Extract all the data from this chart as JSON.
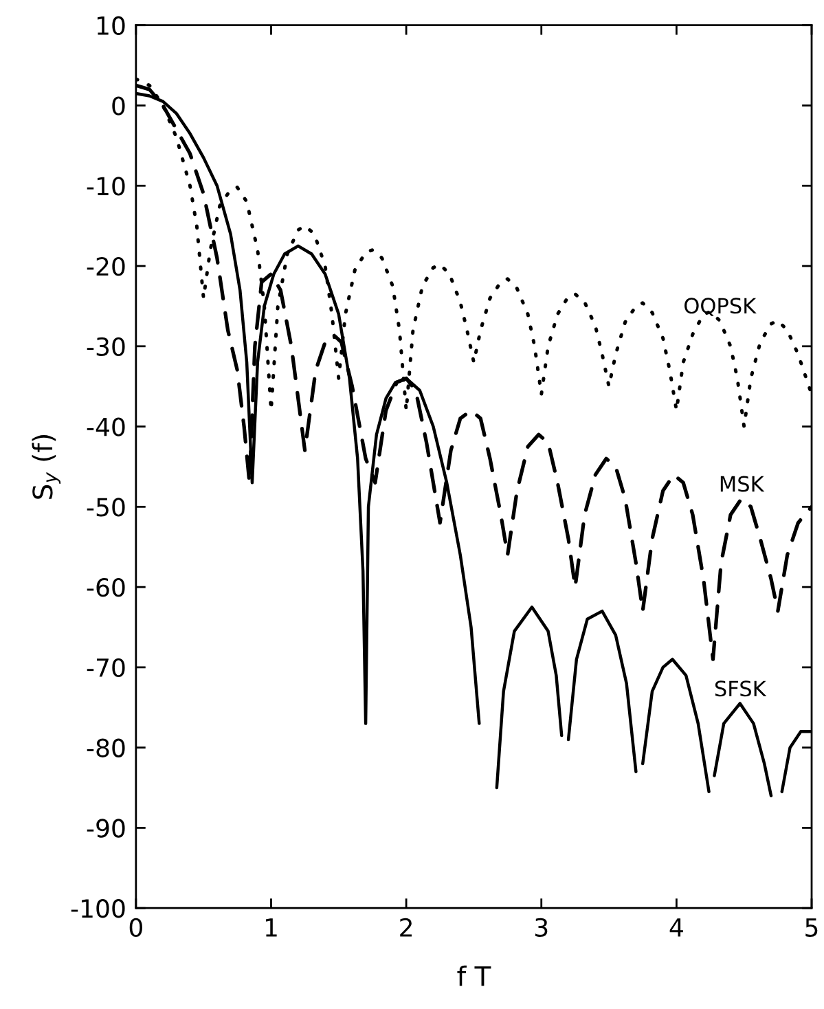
{
  "chart_data": {
    "type": "line",
    "xlabel": "f T",
    "ylabel": "S$_{y}$ (f)",
    "xlim": [
      0,
      5
    ],
    "ylim": [
      -100,
      10
    ],
    "xticks": [
      0,
      1,
      2,
      3,
      4,
      5
    ],
    "yticks": [
      10,
      0,
      -10,
      -20,
      -30,
      -40,
      -50,
      -60,
      -70,
      -80,
      -90,
      -100
    ],
    "grid": false,
    "series": [
      {
        "name": "OQPSK",
        "color": "#000000",
        "line_style": "dotted",
        "x": [
          0,
          0.1,
          0.2,
          0.3,
          0.4,
          0.45,
          0.5,
          0.55,
          0.62,
          0.7,
          0.75,
          0.82,
          0.9,
          0.95,
          1.0,
          1.05,
          1.12,
          1.2,
          1.25,
          1.32,
          1.4,
          1.45,
          1.5,
          1.55,
          1.62,
          1.7,
          1.75,
          1.82,
          1.9,
          1.95,
          2.0,
          2.05,
          2.12,
          2.2,
          2.25,
          2.32,
          2.4,
          2.45,
          2.5,
          2.55,
          2.62,
          2.7,
          2.75,
          2.82,
          2.9,
          2.95,
          3.0,
          3.05,
          3.12,
          3.2,
          3.25,
          3.32,
          3.4,
          3.45,
          3.5,
          3.55,
          3.62,
          3.7,
          3.75,
          3.82,
          3.9,
          3.95,
          4.0,
          4.05,
          4.12,
          4.2,
          4.25,
          4.32,
          4.4,
          4.45,
          4.5,
          4.55,
          4.62,
          4.7,
          4.75,
          4.82,
          4.9,
          4.95,
          5.0
        ],
        "values": [
          3.3,
          2.5,
          0,
          -4,
          -10,
          -15,
          -24,
          -18,
          -12.5,
          -10.5,
          -10.2,
          -12,
          -18,
          -25,
          -38,
          -25,
          -18.5,
          -15.5,
          -15,
          -16,
          -20,
          -26,
          -34,
          -26,
          -20.5,
          -18.3,
          -18,
          -19,
          -22.5,
          -28,
          -38,
          -28,
          -22.5,
          -20.2,
          -19.8,
          -21,
          -24.5,
          -28,
          -32,
          -28,
          -24,
          -22,
          -21.6,
          -22.8,
          -26,
          -30,
          -36,
          -30,
          -26,
          -23.8,
          -23.5,
          -24.5,
          -27.5,
          -31,
          -35,
          -31,
          -27,
          -25,
          -24.6,
          -25.8,
          -29,
          -33,
          -38,
          -32,
          -28.5,
          -26,
          -25.7,
          -26.8,
          -30,
          -34,
          -40,
          -34,
          -29.5,
          -27.2,
          -26.8,
          -28,
          -31,
          -33.5,
          -36
        ]
      },
      {
        "name": "MSK",
        "color": "#000000",
        "line_style": "dashed",
        "x": [
          0,
          0.1,
          0.2,
          0.3,
          0.4,
          0.5,
          0.6,
          0.68,
          0.75,
          0.8,
          0.84,
          0.88,
          0.93,
          1.0,
          1.07,
          1.15,
          1.25,
          1.33,
          1.4,
          1.47,
          1.52,
          1.6,
          1.7,
          1.77,
          1.85,
          1.93,
          2.0,
          2.07,
          2.15,
          2.25,
          2.33,
          2.4,
          2.48,
          2.55,
          2.62,
          2.7,
          2.75,
          2.82,
          2.9,
          2.98,
          3.05,
          3.12,
          3.2,
          3.25,
          3.32,
          3.4,
          3.48,
          3.55,
          3.62,
          3.7,
          3.75,
          3.82,
          3.9,
          3.98,
          4.05,
          4.12,
          4.2,
          4.27,
          4.33,
          4.4,
          4.48,
          4.55,
          4.62,
          4.7,
          4.75,
          4.82,
          4.9,
          5.0
        ],
        "values": [
          2.5,
          2,
          0,
          -3,
          -6,
          -11,
          -19,
          -28,
          -33,
          -40,
          -47,
          -30,
          -22,
          -21,
          -23,
          -30,
          -43,
          -33,
          -29.5,
          -28.7,
          -29.5,
          -35,
          -44,
          -47,
          -38,
          -34.5,
          -34,
          -35.5,
          -42,
          -52,
          -43,
          -39,
          -38,
          -39,
          -44,
          -51,
          -56,
          -48,
          -42.5,
          -41,
          -42,
          -47,
          -54,
          -60,
          -51,
          -46,
          -44,
          -45,
          -49,
          -57,
          -63,
          -54,
          -48,
          -46,
          -47,
          -51,
          -59,
          -69,
          -57,
          -51,
          -49,
          -50,
          -54,
          -59,
          -63,
          -56,
          -52,
          -50
        ]
      },
      {
        "name": "SFSK",
        "color": "#000000",
        "line_style": "solid",
        "x": [
          0,
          0.1,
          0.2,
          0.3,
          0.4,
          0.5,
          0.6,
          0.7,
          0.77,
          0.82,
          0.86,
          0.9,
          0.95,
          1.02,
          1.1,
          1.2,
          1.3,
          1.4,
          1.5,
          1.58,
          1.64,
          1.68,
          1.7,
          1.72,
          1.78,
          1.85,
          1.92,
          2.0,
          2.1,
          2.2,
          2.3,
          2.4,
          2.48,
          2.54,
          2.6,
          2.67,
          2.72,
          2.8,
          2.93,
          3.05,
          3.11,
          3.15,
          3.17,
          3.2,
          3.26,
          3.34,
          3.45,
          3.55,
          3.63,
          3.7,
          3.72,
          3.75,
          3.82,
          3.9,
          3.97,
          4.07,
          4.16,
          4.24,
          4.26,
          4.28,
          4.35,
          4.47,
          4.57,
          4.65,
          4.7,
          4.74,
          4.78,
          4.84,
          4.92,
          5.0
        ],
        "values": [
          1.5,
          1.2,
          0.5,
          -1,
          -3.5,
          -6.5,
          -10,
          -16,
          -23,
          -32,
          -47,
          -32,
          -25,
          -21,
          -18.5,
          -17.5,
          -18.5,
          -21,
          -26,
          -34,
          -44,
          -58,
          -77,
          -50,
          -41,
          -36.5,
          -34.5,
          -34,
          -35.5,
          -40,
          -47,
          -56,
          -65,
          -77,
          null,
          -85,
          -73,
          -65.5,
          -62.5,
          -65.5,
          -71,
          -78.5,
          null,
          -79,
          -69,
          -64,
          -63,
          -66,
          -72,
          -83,
          null,
          -82,
          -73,
          -70,
          -69,
          -71,
          -77,
          -85.5,
          null,
          -83.5,
          -77,
          -74.5,
          -77,
          -82,
          -86,
          null,
          -85.5,
          -80,
          -78,
          -78
        ]
      }
    ]
  }
}
